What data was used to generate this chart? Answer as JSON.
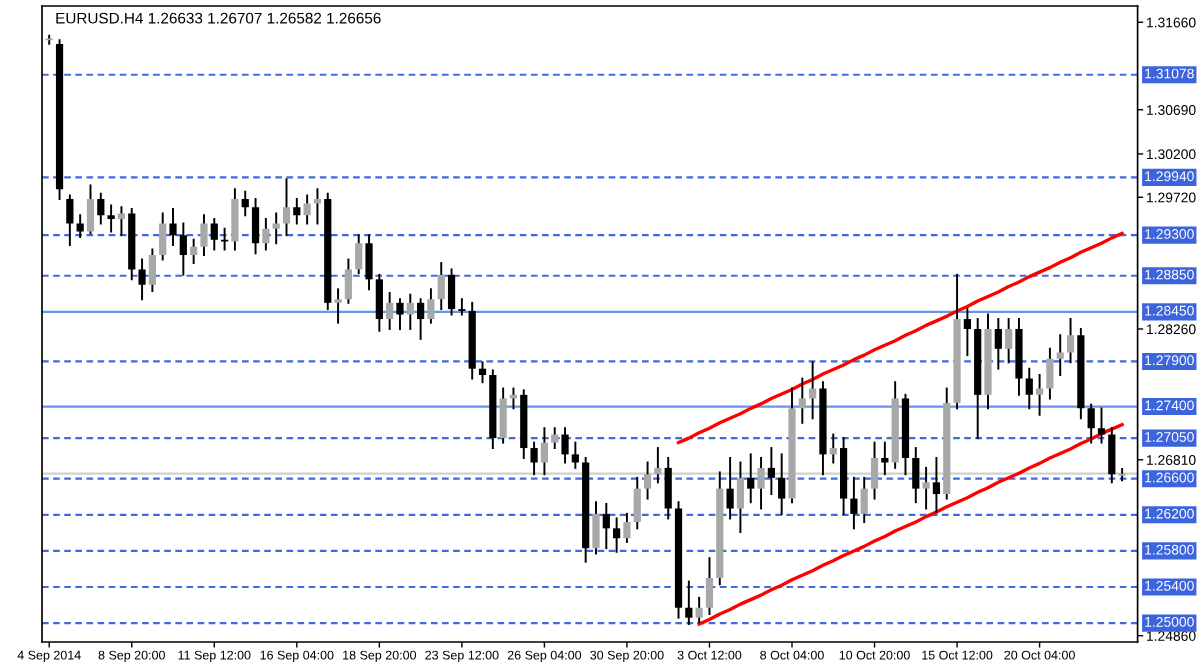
{
  "chart_data": {
    "type": "candlestick",
    "title": "EURUSD.H4 1.26633 1.26707 1.26582 1.26656",
    "categories": [
      "4 Sep 2014",
      null,
      null,
      null,
      null,
      null,
      null,
      null,
      "8 Sep 20:00",
      null,
      null,
      null,
      null,
      null,
      null,
      null,
      "11 Sep 12:00",
      null,
      null,
      null,
      null,
      null,
      null,
      null,
      "16 Sep 04:00",
      null,
      null,
      null,
      null,
      null,
      null,
      null,
      "18 Sep 20:00",
      null,
      null,
      null,
      null,
      null,
      null,
      null,
      "23 Sep 12:00",
      null,
      null,
      null,
      null,
      null,
      null,
      null,
      "26 Sep 04:00",
      null,
      null,
      null,
      null,
      null,
      null,
      null,
      "30 Sep 20:00",
      null,
      null,
      null,
      null,
      null,
      null,
      null,
      "3 Oct 12:00",
      null,
      null,
      null,
      null,
      null,
      null,
      null,
      "8 Oct 04:00",
      null,
      null,
      null,
      null,
      null,
      null,
      null,
      "10 Oct 20:00",
      null,
      null,
      null,
      null,
      null,
      null,
      null,
      "15 Oct 12:00",
      null,
      null,
      null,
      null,
      null,
      null,
      null,
      "20 Oct 04:00",
      null,
      null,
      null,
      null,
      null,
      null,
      null,
      null
    ],
    "ohlc": [
      [
        1.3146,
        1.3151,
        1.3142,
        1.3148
      ],
      [
        1.3142,
        1.3146,
        1.297,
        1.2981
      ],
      [
        1.297,
        1.2974,
        1.2919,
        1.2943
      ],
      [
        1.2943,
        1.2952,
        1.2928,
        1.2934
      ],
      [
        1.2934,
        1.2985,
        1.2932,
        1.297
      ],
      [
        1.297,
        1.2976,
        1.2943,
        1.2952
      ],
      [
        1.2952,
        1.2963,
        1.2934,
        1.2948
      ],
      [
        1.2948,
        1.2961,
        1.293,
        1.2954
      ],
      [
        1.2954,
        1.2959,
        1.2881,
        1.2892
      ],
      [
        1.2892,
        1.2903,
        1.2859,
        1.2875
      ],
      [
        1.2875,
        1.2914,
        1.2868,
        1.2908
      ],
      [
        1.2908,
        1.2954,
        1.2903,
        1.2943
      ],
      [
        1.2943,
        1.2959,
        1.2919,
        1.293
      ],
      [
        1.293,
        1.2943,
        1.2886,
        1.2908
      ],
      [
        1.2908,
        1.2925,
        1.2899,
        1.2917
      ],
      [
        1.2917,
        1.2952,
        1.2908,
        1.2943
      ],
      [
        1.2943,
        1.2948,
        1.2914,
        1.2925
      ],
      [
        1.2925,
        1.2937,
        1.2914,
        1.2923
      ],
      [
        1.2923,
        1.2981,
        1.2914,
        1.297
      ],
      [
        1.297,
        1.2978,
        1.2952,
        1.2961
      ],
      [
        1.2961,
        1.297,
        1.291,
        1.2921
      ],
      [
        1.2921,
        1.2948,
        1.2914,
        1.2937
      ],
      [
        1.2937,
        1.2954,
        1.2921,
        1.2943
      ],
      [
        1.2943,
        1.2992,
        1.293,
        1.2961
      ],
      [
        1.2961,
        1.297,
        1.2943,
        1.2952
      ],
      [
        1.2952,
        1.2974,
        1.2943,
        1.2965
      ],
      [
        1.2965,
        1.2981,
        1.2943,
        1.297
      ],
      [
        1.297,
        1.2976,
        1.2848,
        1.2855
      ],
      [
        1.2855,
        1.287,
        1.2833,
        1.2859
      ],
      [
        1.2859,
        1.2903,
        1.2855,
        1.2892
      ],
      [
        1.2892,
        1.293,
        1.2888,
        1.2921
      ],
      [
        1.2921,
        1.293,
        1.287,
        1.2881
      ],
      [
        1.2881,
        1.2886,
        1.2824,
        1.2837
      ],
      [
        1.2837,
        1.2866,
        1.2826,
        1.2855
      ],
      [
        1.2855,
        1.2859,
        1.2826,
        1.2842
      ],
      [
        1.2842,
        1.2864,
        1.2826,
        1.2855
      ],
      [
        1.2855,
        1.2859,
        1.2815,
        1.2837
      ],
      [
        1.2837,
        1.287,
        1.2833,
        1.2859
      ],
      [
        1.2859,
        1.2899,
        1.2848,
        1.2886
      ],
      [
        1.2886,
        1.2892,
        1.2842,
        1.2848
      ],
      [
        1.2848,
        1.2859,
        1.2842,
        1.2846
      ],
      [
        1.2846,
        1.2855,
        1.2771,
        1.2782
      ],
      [
        1.2782,
        1.2789,
        1.2767,
        1.2775
      ],
      [
        1.2775,
        1.278,
        1.2694,
        1.2705
      ],
      [
        1.2705,
        1.276,
        1.27,
        1.2749
      ],
      [
        1.2749,
        1.276,
        1.2738,
        1.2753
      ],
      [
        1.2753,
        1.2758,
        1.2683,
        1.2694
      ],
      [
        1.2694,
        1.27,
        1.2665,
        1.2678
      ],
      [
        1.2678,
        1.2716,
        1.2665,
        1.27
      ],
      [
        1.27,
        1.2716,
        1.2694,
        1.2709
      ],
      [
        1.2709,
        1.2716,
        1.2678,
        1.2687
      ],
      [
        1.2687,
        1.27,
        1.2672,
        1.2678
      ],
      [
        1.2678,
        1.2683,
        1.2568,
        1.2583
      ],
      [
        1.2583,
        1.2634,
        1.2577,
        1.2621
      ],
      [
        1.2621,
        1.2632,
        1.2583,
        1.2605
      ],
      [
        1.2605,
        1.2616,
        1.2579,
        1.2594
      ],
      [
        1.2594,
        1.2621,
        1.259,
        1.2612
      ],
      [
        1.2612,
        1.2661,
        1.2605,
        1.2649
      ],
      [
        1.2649,
        1.2678,
        1.2638,
        1.2665
      ],
      [
        1.2665,
        1.2694,
        1.2656,
        1.2672
      ],
      [
        1.2672,
        1.2683,
        1.2616,
        1.2627
      ],
      [
        1.2627,
        1.2634,
        1.2506,
        1.2517
      ],
      [
        1.2517,
        1.2546,
        1.2499,
        1.2506
      ],
      [
        1.2506,
        1.2528,
        1.2501,
        1.2517
      ],
      [
        1.2517,
        1.2572,
        1.251,
        1.255
      ],
      [
        1.255,
        1.2667,
        1.2543,
        1.2649
      ],
      [
        1.2649,
        1.2683,
        1.2616,
        1.2627
      ],
      [
        1.2627,
        1.2678,
        1.2601,
        1.2661
      ],
      [
        1.2661,
        1.2687,
        1.2634,
        1.2649
      ],
      [
        1.2649,
        1.2683,
        1.2627,
        1.2672
      ],
      [
        1.2672,
        1.2694,
        1.2643,
        1.2661
      ],
      [
        1.2661,
        1.2687,
        1.2621,
        1.2638
      ],
      [
        1.2638,
        1.276,
        1.2634,
        1.2738
      ],
      [
        1.2738,
        1.2771,
        1.2722,
        1.2749
      ],
      [
        1.2749,
        1.2789,
        1.2727,
        1.276
      ],
      [
        1.276,
        1.2767,
        1.2665,
        1.2687
      ],
      [
        1.2687,
        1.2709,
        1.2678,
        1.2694
      ],
      [
        1.2694,
        1.2705,
        1.2621,
        1.2638
      ],
      [
        1.2638,
        1.2661,
        1.2605,
        1.2621
      ],
      [
        1.2621,
        1.2661,
        1.2612,
        1.2649
      ],
      [
        1.2649,
        1.27,
        1.2638,
        1.2683
      ],
      [
        1.2683,
        1.27,
        1.2665,
        1.2678
      ],
      [
        1.2678,
        1.2767,
        1.2672,
        1.2749
      ],
      [
        1.2749,
        1.2753,
        1.2665,
        1.2683
      ],
      [
        1.2683,
        1.2694,
        1.2634,
        1.2649
      ],
      [
        1.2649,
        1.2672,
        1.2627,
        1.2656
      ],
      [
        1.2656,
        1.2683,
        1.2623,
        1.2643
      ],
      [
        1.2643,
        1.276,
        1.2638,
        1.2744
      ],
      [
        1.2744,
        1.2886,
        1.2738,
        1.2837
      ],
      [
        1.2837,
        1.2848,
        1.2797,
        1.2826
      ],
      [
        1.2826,
        1.2837,
        1.2705,
        1.2753
      ],
      [
        1.2753,
        1.2842,
        1.2738,
        1.2826
      ],
      [
        1.2826,
        1.2837,
        1.2782,
        1.2804
      ],
      [
        1.2804,
        1.2837,
        1.2789,
        1.2826
      ],
      [
        1.2826,
        1.2837,
        1.2753,
        1.2771
      ],
      [
        1.2771,
        1.2782,
        1.2738,
        1.2753
      ],
      [
        1.2753,
        1.2775,
        1.2731,
        1.276
      ],
      [
        1.276,
        1.2804,
        1.2749,
        1.2793
      ],
      [
        1.2793,
        1.2819,
        1.2775,
        1.28
      ],
      [
        1.28,
        1.2837,
        1.2789,
        1.2819
      ],
      [
        1.2819,
        1.2826,
        1.2727,
        1.2738
      ],
      [
        1.2738,
        1.2742,
        1.27,
        1.2716
      ],
      [
        1.2716,
        1.2738,
        1.27,
        1.2709
      ],
      [
        1.2709,
        1.2716,
        1.2656,
        1.2665
      ],
      [
        1.26633,
        1.26707,
        1.26582,
        1.26656
      ]
    ],
    "series": [
      {
        "type": "line",
        "color": "#ff0000",
        "values": [
          null,
          null,
          null,
          null,
          null,
          null,
          null,
          null,
          null,
          null,
          null,
          null,
          null,
          null,
          null,
          null,
          null,
          null,
          null,
          null,
          null,
          null,
          null,
          null,
          null,
          null,
          null,
          null,
          null,
          null,
          null,
          null,
          null,
          null,
          null,
          null,
          null,
          null,
          null,
          null,
          null,
          null,
          null,
          null,
          null,
          null,
          null,
          null,
          null,
          null,
          null,
          null,
          null,
          null,
          null,
          null,
          null,
          null,
          null,
          null,
          null,
          1.27,
          1.2705,
          1.2711,
          1.2716,
          1.2722,
          1.2727,
          1.2732,
          1.2738,
          1.2743,
          1.2749,
          1.2754,
          1.2759,
          1.2765,
          1.277,
          1.2776,
          1.2781,
          1.2786,
          1.2792,
          1.2797,
          1.2803,
          1.2808,
          1.2813,
          1.2819,
          1.2824,
          1.283,
          1.2835,
          1.284,
          1.2846,
          1.2851,
          1.2857,
          1.2862,
          1.2867,
          1.2873,
          1.2878,
          1.2884,
          1.2889,
          1.2894,
          1.29,
          1.2905,
          1.2911,
          1.2916,
          1.2921,
          1.2927,
          1.2932
        ]
      },
      {
        "type": "line",
        "color": "#ff0000",
        "values": [
          null,
          null,
          null,
          null,
          null,
          null,
          null,
          null,
          null,
          null,
          null,
          null,
          null,
          null,
          null,
          null,
          null,
          null,
          null,
          null,
          null,
          null,
          null,
          null,
          null,
          null,
          null,
          null,
          null,
          null,
          null,
          null,
          null,
          null,
          null,
          null,
          null,
          null,
          null,
          null,
          null,
          null,
          null,
          null,
          null,
          null,
          null,
          null,
          null,
          null,
          null,
          null,
          null,
          null,
          null,
          null,
          null,
          null,
          null,
          null,
          null,
          null,
          null,
          1.2499,
          1.2504,
          1.251,
          1.2515,
          1.2521,
          1.2526,
          1.2531,
          1.2537,
          1.2542,
          1.2548,
          1.2553,
          1.2558,
          1.2564,
          1.2569,
          1.2575,
          1.258,
          1.2585,
          1.2591,
          1.2596,
          1.2602,
          1.2607,
          1.2612,
          1.2618,
          1.2623,
          1.2629,
          1.2634,
          1.2639,
          1.2645,
          1.265,
          1.2656,
          1.2661,
          1.2666,
          1.2672,
          1.2677,
          1.2683,
          1.2688,
          1.2693,
          1.2699,
          1.2704,
          1.271,
          1.2715,
          1.272
        ]
      }
    ],
    "ylim": [
      1.2479,
      1.3184
    ],
    "yticks": [
      {
        "value": 1.3166,
        "label": "1.31660"
      },
      {
        "value": 1.3069,
        "label": "1.30690"
      },
      {
        "value": 1.302,
        "label": "1.30200"
      },
      {
        "value": 1.2972,
        "label": "1.29720"
      },
      {
        "value": 1.2826,
        "label": "1.28260"
      },
      {
        "value": 1.2681,
        "label": "1.26810"
      },
      {
        "value": 1.2486,
        "label": "1.24860"
      }
    ],
    "ref_lines": [
      {
        "axis": "y",
        "value": 1.31078,
        "label": "1.31078",
        "color": "#4169e1",
        "line_style": "dashed"
      },
      {
        "axis": "y",
        "value": 1.2994,
        "label": "1.29940",
        "color": "#4169e1",
        "line_style": "dashed"
      },
      {
        "axis": "y",
        "value": 1.293,
        "label": "1.29300",
        "color": "#4169e1",
        "line_style": "dashed"
      },
      {
        "axis": "y",
        "value": 1.2885,
        "label": "1.28850",
        "color": "#4169e1",
        "line_style": "dashed"
      },
      {
        "axis": "y",
        "value": 1.2845,
        "label": "1.28450",
        "color": "#6495ed",
        "line_style": "solid"
      },
      {
        "axis": "y",
        "value": 1.279,
        "label": "1.27900",
        "color": "#4169e1",
        "line_style": "dashed"
      },
      {
        "axis": "y",
        "value": 1.274,
        "label": "1.27400",
        "color": "#6495ed",
        "line_style": "solid"
      },
      {
        "axis": "y",
        "value": 1.2705,
        "label": "1.27050",
        "color": "#4169e1",
        "line_style": "dashed"
      },
      {
        "axis": "y",
        "value": 1.26656,
        "label": null,
        "color": "#d0d0d0",
        "line_style": "solid"
      },
      {
        "axis": "y",
        "value": 1.266,
        "label": "1.26600",
        "color": "#4169e1",
        "line_style": "dashed"
      },
      {
        "axis": "y",
        "value": 1.262,
        "label": "1.26200",
        "color": "#4169e1",
        "line_style": "dashed"
      },
      {
        "axis": "y",
        "value": 1.258,
        "label": "1.25800",
        "color": "#4169e1",
        "line_style": "dashed"
      },
      {
        "axis": "y",
        "value": 1.254,
        "label": "1.25400",
        "color": "#4169e1",
        "line_style": "dashed"
      },
      {
        "axis": "y",
        "value": 1.25,
        "label": "1.25000",
        "color": "#4169e1",
        "line_style": "dashed"
      }
    ]
  }
}
